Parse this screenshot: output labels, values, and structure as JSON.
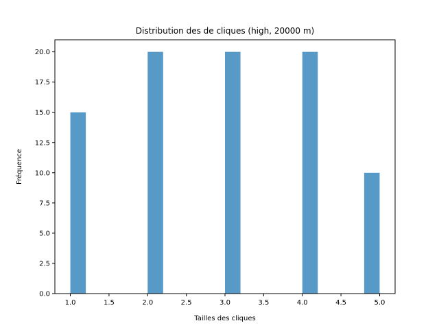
{
  "chart_data": {
    "type": "bar",
    "title": "Distribution des de cliques (high, 20000 m)",
    "xlabel": "Tailles des cliques",
    "ylabel": "Fréquence",
    "bars": [
      {
        "x_start": 1.0,
        "x_end": 1.2,
        "value": 15
      },
      {
        "x_start": 2.0,
        "x_end": 2.2,
        "value": 20
      },
      {
        "x_start": 3.0,
        "x_end": 3.2,
        "value": 20
      },
      {
        "x_start": 4.0,
        "x_end": 4.2,
        "value": 20
      },
      {
        "x_start": 4.8,
        "x_end": 5.0,
        "value": 10
      }
    ],
    "xlim": [
      0.8,
      5.2
    ],
    "ylim": [
      0,
      21
    ],
    "xticks": [
      1.0,
      1.5,
      2.0,
      2.5,
      3.0,
      3.5,
      4.0,
      4.5,
      5.0
    ],
    "xtick_labels": [
      "1.0",
      "1.5",
      "2.0",
      "2.5",
      "3.0",
      "3.5",
      "4.0",
      "4.5",
      "5.0"
    ],
    "yticks": [
      0,
      2.5,
      5,
      7.5,
      10,
      12.5,
      15,
      17.5,
      20
    ],
    "ytick_labels": [
      "0.0",
      "2.5",
      "5.0",
      "7.5",
      "10.0",
      "12.5",
      "15.0",
      "17.5",
      "20.0"
    ],
    "grid": false,
    "bar_color": "#5799c7"
  }
}
